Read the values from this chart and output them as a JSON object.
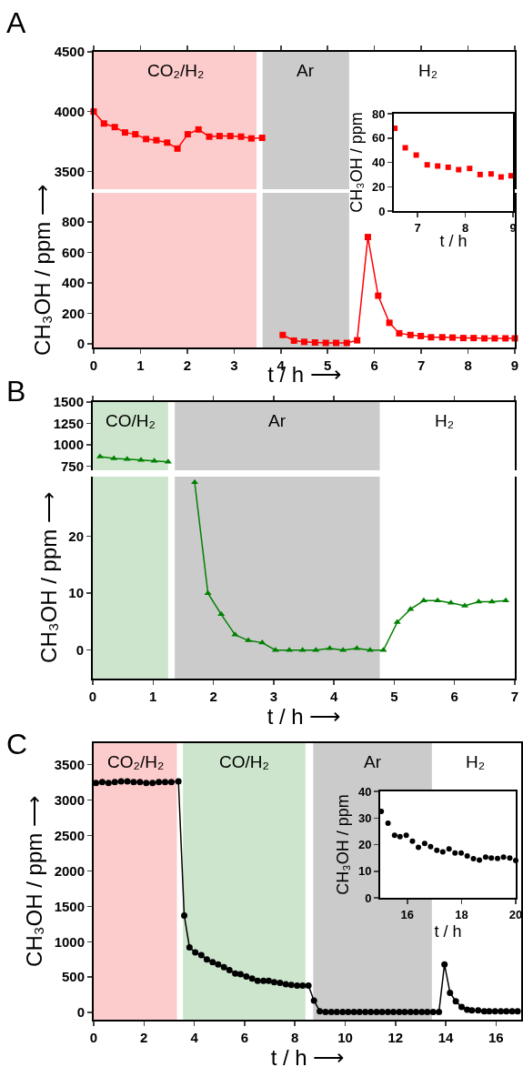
{
  "chart_data": [
    {
      "type": "line",
      "title": "A",
      "annotations": [
        "H₂"
      ],
      "xlim": [
        0,
        9
      ],
      "xticks": [
        0,
        1,
        2,
        3,
        4,
        5,
        6,
        7,
        8,
        9
      ],
      "ylim": [
        3350,
        4500
      ],
      "yticks": [
        3500,
        4000,
        4500
      ],
      "tick_labels": "y",
      "marker": "square",
      "series": [
        {
          "color": "#ff0000",
          "x": [
            0,
            0.22,
            0.45,
            0.67,
            0.89,
            1.12,
            1.34,
            1.57,
            1.79,
            2.01,
            2.24,
            2.47,
            2.69,
            2.92,
            3.15,
            3.37,
            3.6
          ],
          "values": [
            4000,
            3900,
            3870,
            3825,
            3810,
            3770,
            3760,
            3740,
            3690,
            3810,
            3850,
            3790,
            3795,
            3795,
            3790,
            3775,
            3780
          ]
        }
      ],
      "bands": [
        {
          "axis": "x",
          "from": 0,
          "to": 3.48,
          "label": "CO₂/H₂",
          "color": "#fccbcb"
        },
        {
          "axis": "x",
          "from": 3.61,
          "to": 5.46,
          "label": "Ar",
          "color": "#cbcbcb"
        }
      ]
    },
    {
      "type": "line",
      "xlabel": "t / h ⟶",
      "ylabel": "CH₃OH / ppm ⟶",
      "xlim": [
        0,
        9
      ],
      "xticks": [
        0,
        1,
        2,
        3,
        4,
        5,
        6,
        7,
        8,
        9
      ],
      "ylim": [
        -25,
        990
      ],
      "yticks": [
        0,
        200,
        400,
        600,
        800
      ],
      "marker": "square",
      "series": [
        {
          "color": "#ff0000",
          "x": [
            4.04,
            4.28,
            4.5,
            4.73,
            4.96,
            5.18,
            5.41,
            5.63,
            5.86,
            6.08,
            6.32,
            6.53,
            6.77,
            6.99,
            7.21,
            7.45,
            7.67,
            7.9,
            8.12,
            8.35,
            8.57,
            8.8,
            9.0
          ],
          "values": [
            57,
            20,
            12,
            8,
            5,
            5,
            5,
            22,
            700,
            315,
            137,
            68,
            57,
            50,
            42,
            42,
            40,
            37,
            37,
            35,
            35,
            35,
            35
          ]
        }
      ],
      "bands": [
        {
          "axis": "x",
          "from": 0,
          "to": 3.48,
          "color": "#fccbcb"
        },
        {
          "axis": "x",
          "from": 3.61,
          "to": 5.46,
          "color": "#cbcbcb"
        }
      ]
    },
    {
      "type": "scatter",
      "xlabel": "t / h",
      "ylabel": "CH₃OH / ppm",
      "xlim": [
        6.5,
        9
      ],
      "xticks": [
        7,
        8,
        9
      ],
      "ylim": [
        0,
        80
      ],
      "yticks": [
        0,
        20,
        40,
        60,
        80
      ],
      "marker": "square",
      "series": [
        {
          "color": "#ff0000",
          "x": [
            6.52,
            6.74,
            6.97,
            7.2,
            7.42,
            7.64,
            7.86,
            8.09,
            8.31,
            8.54,
            8.75,
            8.96
          ],
          "values": [
            68,
            52,
            46,
            38,
            37,
            36,
            34,
            35,
            30,
            30.5,
            28,
            29
          ]
        }
      ]
    },
    {
      "type": "line",
      "title": "B",
      "annotations": [
        "H₂"
      ],
      "xlim": [
        0,
        7
      ],
      "xticks": [
        0,
        1,
        2,
        3,
        4,
        5,
        6,
        7
      ],
      "ylim": [
        700,
        1500
      ],
      "yticks": [
        750,
        1000,
        1250,
        1500
      ],
      "tick_labels": "y",
      "marker": "triangle",
      "series": [
        {
          "color": "#008000",
          "x": [
            0.12,
            0.35,
            0.57,
            0.8,
            1.02,
            1.25
          ],
          "values": [
            860,
            840,
            830,
            820,
            810,
            800
          ]
        }
      ],
      "bands": [
        {
          "axis": "x",
          "from": 0,
          "to": 1.25,
          "label": "CO/H₂",
          "color": "#cce5cc"
        },
        {
          "axis": "x",
          "from": 1.36,
          "to": 4.76,
          "label": "Ar",
          "color": "#cbcbcb"
        }
      ]
    },
    {
      "type": "line",
      "xlabel": "t / h ⟶",
      "ylabel": "CH₃OH / ppm ⟶",
      "xlim": [
        0,
        7
      ],
      "xticks": [
        0,
        1,
        2,
        3,
        4,
        5,
        6,
        7
      ],
      "ylim": [
        -5,
        30.5
      ],
      "yticks": [
        0,
        10,
        20
      ],
      "marker": "triangle",
      "series": [
        {
          "color": "#008000",
          "x": [
            1.69,
            1.91,
            2.13,
            2.36,
            2.58,
            2.81,
            3.03,
            3.26,
            3.48,
            3.7,
            3.93,
            4.15,
            4.38,
            4.6,
            4.82,
            5.05,
            5.27,
            5.49,
            5.72,
            5.94,
            6.17,
            6.4,
            6.62,
            6.85
          ],
          "values": [
            29.5,
            10,
            6.3,
            2.7,
            1.7,
            1.3,
            0,
            0,
            0,
            0,
            0.3,
            0,
            0.3,
            0,
            0,
            4.9,
            7.2,
            8.7,
            8.7,
            8.3,
            7.8,
            8.5,
            8.5,
            8.7
          ]
        }
      ],
      "bands": [
        {
          "axis": "x",
          "from": 0,
          "to": 1.25,
          "color": "#cce5cc"
        },
        {
          "axis": "x",
          "from": 1.36,
          "to": 4.76,
          "color": "#cbcbcb"
        }
      ]
    },
    {
      "type": "line",
      "title": "C",
      "annotations": [
        "H₂"
      ],
      "xlabel": "t / h ⟶",
      "ylabel": "CH₃OH / ppm ⟶",
      "xlim": [
        0,
        17
      ],
      "xticks": [
        0,
        2,
        4,
        6,
        8,
        10,
        12,
        14,
        16
      ],
      "ylim": [
        -100,
        3800
      ],
      "yticks": [
        0,
        500,
        1000,
        1500,
        2000,
        2500,
        3000,
        3500
      ],
      "marker": "circle",
      "series": [
        {
          "color": "#000000",
          "x": [
            0.09,
            0.34,
            0.59,
            0.84,
            1.09,
            1.34,
            1.59,
            1.84,
            2.09,
            2.34,
            2.59,
            2.84,
            3.09,
            3.37,
            3.6,
            3.81,
            4.04,
            4.28,
            4.5,
            4.73,
            4.95,
            5.18,
            5.4,
            5.63,
            5.84,
            6.07,
            6.3,
            6.52,
            6.75,
            6.96,
            7.18,
            7.41,
            7.64,
            7.86,
            8.09,
            8.31,
            8.54,
            8.76,
            8.99,
            9.22,
            9.45,
            9.67,
            9.9,
            10.12,
            10.35,
            10.57,
            10.8,
            11.02,
            11.25,
            11.47,
            11.7,
            11.92,
            12.15,
            12.37,
            12.6,
            12.82,
            13.05,
            13.27,
            13.5,
            13.73,
            13.95,
            14.17,
            14.4,
            14.63,
            14.85,
            15.04,
            15.29,
            15.53,
            15.73,
            15.96,
            16.19,
            16.41,
            16.64,
            16.86
          ],
          "values": [
            3240,
            3250,
            3240,
            3250,
            3260,
            3260,
            3250,
            3250,
            3240,
            3240,
            3250,
            3250,
            3250,
            3260,
            1370,
            920,
            850,
            810,
            750,
            710,
            680,
            640,
            600,
            550,
            540,
            510,
            480,
            450,
            450,
            450,
            430,
            420,
            400,
            390,
            380,
            380,
            380,
            170,
            20,
            10,
            10,
            10,
            10,
            10,
            10,
            10,
            10,
            10,
            10,
            10,
            10,
            10,
            10,
            10,
            10,
            10,
            10,
            10,
            10,
            10,
            680,
            280,
            160,
            80,
            40,
            30,
            30,
            20,
            20,
            20,
            20,
            20,
            20,
            20
          ]
        }
      ],
      "bands": [
        {
          "axis": "x",
          "from": 0,
          "to": 3.31,
          "label": "CO₂/H₂",
          "color": "#fccbcb"
        },
        {
          "axis": "x",
          "from": 3.55,
          "to": 8.42,
          "label": "CO/H₂",
          "color": "#cce5cc"
        },
        {
          "axis": "x",
          "from": 8.73,
          "to": 13.45,
          "label": "Ar",
          "color": "#cbcbcb"
        }
      ]
    },
    {
      "type": "scatter",
      "xlabel": "t / h",
      "ylabel": "CH₃OH / ppm",
      "xlim": [
        15,
        20
      ],
      "xticks": [
        16,
        18,
        20
      ],
      "ylim": [
        0,
        40
      ],
      "yticks": [
        0,
        10,
        20,
        30,
        40
      ],
      "marker": "circle",
      "series": [
        {
          "color": "#000000",
          "x": [
            15.04,
            15.29,
            15.53,
            15.73,
            15.96,
            16.19,
            16.41,
            16.64,
            16.86,
            17.09,
            17.31,
            17.54,
            17.76,
            17.99,
            18.21,
            18.44,
            18.66,
            18.89,
            19.1,
            19.33,
            19.55,
            19.78,
            20
          ],
          "values": [
            32.5,
            28,
            23.5,
            23,
            23.5,
            21.3,
            19,
            20.4,
            19.2,
            17.9,
            17.3,
            18.4,
            16.8,
            16.8,
            15.7,
            14.7,
            14.2,
            15.3,
            15,
            14.8,
            15.3,
            15,
            14
          ]
        }
      ]
    }
  ]
}
